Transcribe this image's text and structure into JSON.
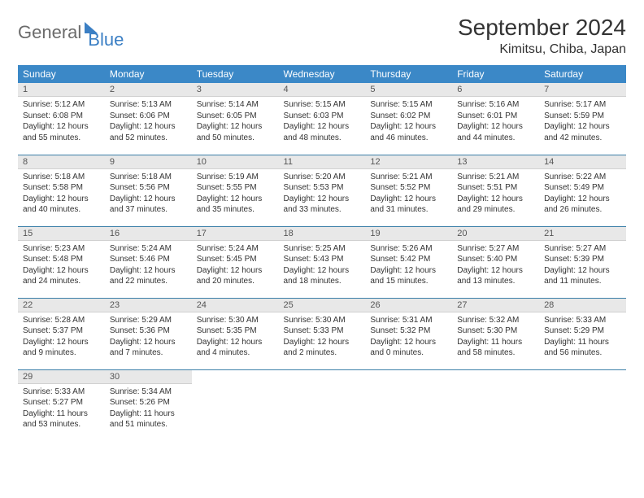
{
  "brand": {
    "part1": "General",
    "part2": "Blue"
  },
  "title": "September 2024",
  "location": "Kimitsu, Chiba, Japan",
  "colors": {
    "header_bg": "#3b88c7",
    "header_fg": "#ffffff",
    "daynum_bg": "#e8e8e8",
    "row_border": "#3b7fa8",
    "logo_gray": "#6b6b6b",
    "logo_blue": "#3b7fc4",
    "page_bg": "#ffffff",
    "text": "#333333"
  },
  "dayHeaders": [
    "Sunday",
    "Monday",
    "Tuesday",
    "Wednesday",
    "Thursday",
    "Friday",
    "Saturday"
  ],
  "weeks": [
    [
      {
        "n": "1",
        "sr": "5:12 AM",
        "ss": "6:08 PM",
        "dl": "12 hours and 55 minutes."
      },
      {
        "n": "2",
        "sr": "5:13 AM",
        "ss": "6:06 PM",
        "dl": "12 hours and 52 minutes."
      },
      {
        "n": "3",
        "sr": "5:14 AM",
        "ss": "6:05 PM",
        "dl": "12 hours and 50 minutes."
      },
      {
        "n": "4",
        "sr": "5:15 AM",
        "ss": "6:03 PM",
        "dl": "12 hours and 48 minutes."
      },
      {
        "n": "5",
        "sr": "5:15 AM",
        "ss": "6:02 PM",
        "dl": "12 hours and 46 minutes."
      },
      {
        "n": "6",
        "sr": "5:16 AM",
        "ss": "6:01 PM",
        "dl": "12 hours and 44 minutes."
      },
      {
        "n": "7",
        "sr": "5:17 AM",
        "ss": "5:59 PM",
        "dl": "12 hours and 42 minutes."
      }
    ],
    [
      {
        "n": "8",
        "sr": "5:18 AM",
        "ss": "5:58 PM",
        "dl": "12 hours and 40 minutes."
      },
      {
        "n": "9",
        "sr": "5:18 AM",
        "ss": "5:56 PM",
        "dl": "12 hours and 37 minutes."
      },
      {
        "n": "10",
        "sr": "5:19 AM",
        "ss": "5:55 PM",
        "dl": "12 hours and 35 minutes."
      },
      {
        "n": "11",
        "sr": "5:20 AM",
        "ss": "5:53 PM",
        "dl": "12 hours and 33 minutes."
      },
      {
        "n": "12",
        "sr": "5:21 AM",
        "ss": "5:52 PM",
        "dl": "12 hours and 31 minutes."
      },
      {
        "n": "13",
        "sr": "5:21 AM",
        "ss": "5:51 PM",
        "dl": "12 hours and 29 minutes."
      },
      {
        "n": "14",
        "sr": "5:22 AM",
        "ss": "5:49 PM",
        "dl": "12 hours and 26 minutes."
      }
    ],
    [
      {
        "n": "15",
        "sr": "5:23 AM",
        "ss": "5:48 PM",
        "dl": "12 hours and 24 minutes."
      },
      {
        "n": "16",
        "sr": "5:24 AM",
        "ss": "5:46 PM",
        "dl": "12 hours and 22 minutes."
      },
      {
        "n": "17",
        "sr": "5:24 AM",
        "ss": "5:45 PM",
        "dl": "12 hours and 20 minutes."
      },
      {
        "n": "18",
        "sr": "5:25 AM",
        "ss": "5:43 PM",
        "dl": "12 hours and 18 minutes."
      },
      {
        "n": "19",
        "sr": "5:26 AM",
        "ss": "5:42 PM",
        "dl": "12 hours and 15 minutes."
      },
      {
        "n": "20",
        "sr": "5:27 AM",
        "ss": "5:40 PM",
        "dl": "12 hours and 13 minutes."
      },
      {
        "n": "21",
        "sr": "5:27 AM",
        "ss": "5:39 PM",
        "dl": "12 hours and 11 minutes."
      }
    ],
    [
      {
        "n": "22",
        "sr": "5:28 AM",
        "ss": "5:37 PM",
        "dl": "12 hours and 9 minutes."
      },
      {
        "n": "23",
        "sr": "5:29 AM",
        "ss": "5:36 PM",
        "dl": "12 hours and 7 minutes."
      },
      {
        "n": "24",
        "sr": "5:30 AM",
        "ss": "5:35 PM",
        "dl": "12 hours and 4 minutes."
      },
      {
        "n": "25",
        "sr": "5:30 AM",
        "ss": "5:33 PM",
        "dl": "12 hours and 2 minutes."
      },
      {
        "n": "26",
        "sr": "5:31 AM",
        "ss": "5:32 PM",
        "dl": "12 hours and 0 minutes."
      },
      {
        "n": "27",
        "sr": "5:32 AM",
        "ss": "5:30 PM",
        "dl": "11 hours and 58 minutes."
      },
      {
        "n": "28",
        "sr": "5:33 AM",
        "ss": "5:29 PM",
        "dl": "11 hours and 56 minutes."
      }
    ],
    [
      {
        "n": "29",
        "sr": "5:33 AM",
        "ss": "5:27 PM",
        "dl": "11 hours and 53 minutes."
      },
      {
        "n": "30",
        "sr": "5:34 AM",
        "ss": "5:26 PM",
        "dl": "11 hours and 51 minutes."
      },
      null,
      null,
      null,
      null,
      null
    ]
  ],
  "labels": {
    "sunrise": "Sunrise:",
    "sunset": "Sunset:",
    "daylight": "Daylight:"
  }
}
